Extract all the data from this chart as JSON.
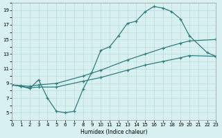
{
  "title": "",
  "xlabel": "Humidex (Indice chaleur)",
  "bg_color": "#d8f0f0",
  "grid_color": "#b8dada",
  "line_color": "#2d7d7d",
  "xlim": [
    0,
    23
  ],
  "ylim": [
    4,
    20
  ],
  "xticks": [
    0,
    1,
    2,
    3,
    4,
    5,
    6,
    7,
    8,
    9,
    10,
    11,
    12,
    13,
    14,
    15,
    16,
    17,
    18,
    19,
    20,
    21,
    22,
    23
  ],
  "yticks": [
    5,
    7,
    9,
    11,
    13,
    15,
    17,
    19
  ],
  "s1x": [
    0,
    1,
    2,
    3,
    4,
    5,
    6,
    7,
    8,
    9,
    10,
    11,
    12,
    13,
    14,
    15,
    16,
    17,
    18,
    19,
    20,
    22,
    23
  ],
  "s1y": [
    8.8,
    8.6,
    8.3,
    9.5,
    7.0,
    5.2,
    5.0,
    5.2,
    8.2,
    10.5,
    13.5,
    14.0,
    15.5,
    17.2,
    17.5,
    18.8,
    19.5,
    19.3,
    18.8,
    17.8,
    15.5,
    13.2,
    12.7
  ],
  "s2x": [
    0,
    1,
    2,
    3,
    5,
    8,
    10,
    13,
    15,
    17,
    19,
    20,
    23
  ],
  "s2y": [
    8.8,
    8.7,
    8.6,
    8.8,
    9.0,
    10.0,
    10.8,
    12.2,
    13.0,
    13.8,
    14.5,
    14.8,
    15.0
  ],
  "s3x": [
    0,
    1,
    2,
    3,
    5,
    8,
    10,
    13,
    15,
    17,
    19,
    20,
    23
  ],
  "s3y": [
    8.8,
    8.6,
    8.4,
    8.5,
    8.5,
    9.3,
    9.8,
    10.8,
    11.5,
    12.0,
    12.5,
    12.8,
    12.7
  ]
}
